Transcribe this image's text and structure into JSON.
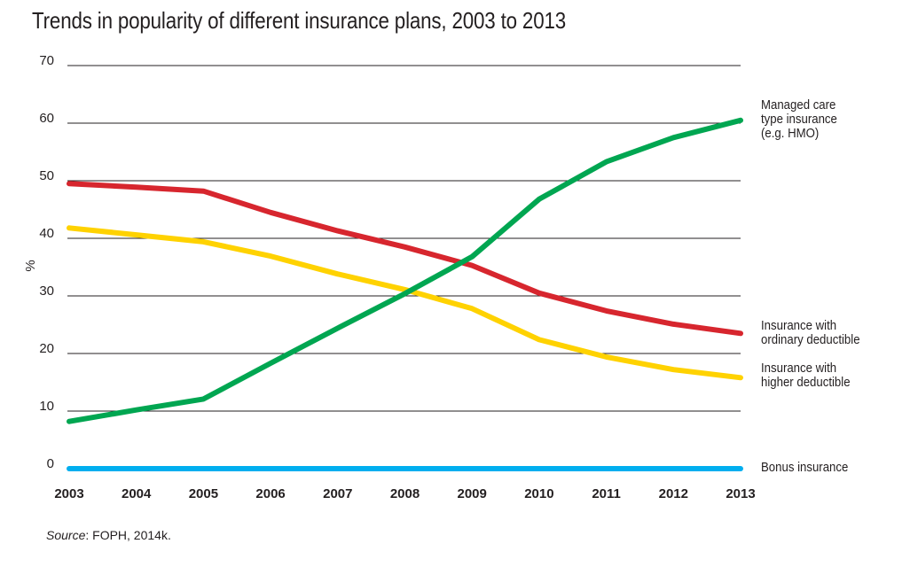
{
  "chart_data": {
    "type": "line",
    "title": "Trends in popularity of different insurance plans, 2003 to 2013",
    "xlabel": "",
    "ylabel": "%",
    "x": [
      "2003",
      "2004",
      "2005",
      "2006",
      "2007",
      "2008",
      "2009",
      "2010",
      "2011",
      "2012",
      "2013"
    ],
    "ylim": [
      0,
      70
    ],
    "yticks": [
      0,
      10,
      20,
      30,
      40,
      50,
      60,
      70
    ],
    "grid": true,
    "legend": "right (direct labels at line ends)",
    "series": [
      {
        "name": "Managed care type insurance (e.g. HMO)",
        "label_lines": "Managed care\ntype insurance\n(e.g. HMO)",
        "color": "#00a651",
        "values": [
          8.2,
          10.2,
          12.1,
          18.3,
          24.4,
          30.4,
          36.8,
          46.8,
          53.3,
          57.5,
          60.5
        ]
      },
      {
        "name": "Insurance with ordinary deductible",
        "label_lines": "Insurance with\nordinary deductible",
        "color": "#d7262e",
        "values": [
          49.5,
          48.9,
          48.2,
          44.5,
          41.3,
          38.5,
          35.3,
          30.5,
          27.4,
          25.1,
          23.5
        ]
      },
      {
        "name": "Insurance with higher deductible",
        "label_lines": "Insurance with\nhigher deductible",
        "color": "#ffd200",
        "values": [
          41.8,
          40.6,
          39.4,
          36.9,
          33.8,
          31.1,
          27.8,
          22.4,
          19.4,
          17.2,
          15.8
        ]
      },
      {
        "name": "Bonus insurance",
        "label_lines": "Bonus insurance",
        "color": "#00aeef",
        "values": [
          0,
          0,
          0,
          0,
          0,
          0,
          0,
          0,
          0,
          0,
          0
        ]
      }
    ]
  },
  "source": {
    "prefix": "Source",
    "text": ": FOPH, 2014k."
  }
}
